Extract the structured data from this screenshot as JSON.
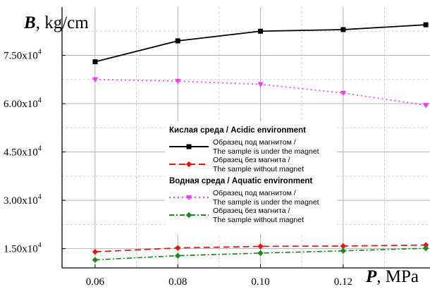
{
  "chart_data": {
    "type": "line",
    "y_axis_title_symbol": "B",
    "y_axis_title_unit": ", kg/cm",
    "x_axis_title_symbol": "P",
    "x_axis_title_unit": ", MPa",
    "x_ticks": [
      0.06,
      0.08,
      0.1,
      0.12
    ],
    "x_tick_labels": [
      "0.06",
      "0.08",
      "0.10",
      "0.12"
    ],
    "y_ticks": [
      15000,
      30000,
      45000,
      60000,
      75000
    ],
    "y_tick_mantissas": [
      "1.50x10",
      "3.00x10",
      "4.50x10",
      "6.00x10",
      "7.50x10"
    ],
    "y_tick_exponent": "4",
    "xlim": [
      0.052,
      0.141
    ],
    "ylim": [
      9000,
      90000
    ],
    "grid": true,
    "legend_position": "center",
    "legend_groups": [
      {
        "title": "Кислая среда / Acidic environment",
        "series_indices": [
          0,
          1
        ]
      },
      {
        "title": "Водная среда / Aquatic environment",
        "series_indices": [
          2,
          3
        ]
      }
    ],
    "series": [
      {
        "label_line1": "Образец под магнитом /",
        "label_line2": "The sample is under the magnet",
        "color": "#000000",
        "dash": "solid",
        "marker": "square",
        "x": [
          0.06,
          0.08,
          0.1,
          0.12,
          0.14
        ],
        "y": [
          73000,
          79500,
          82500,
          83000,
          84500
        ]
      },
      {
        "label_line1": "Образец без магнита /",
        "label_line2": "The sample without magnet",
        "color": "#ee1111",
        "dash": "dashed",
        "marker": "diamond",
        "x": [
          0.06,
          0.08,
          0.1,
          0.12,
          0.14
        ],
        "y": [
          14000,
          15200,
          15700,
          15800,
          16100
        ]
      },
      {
        "label_line1": "Образец под магнитом /",
        "label_line2": "The sample is under the magnet",
        "color": "#ff33ff",
        "dash": "dotted",
        "marker": "triangle-down",
        "x": [
          0.06,
          0.08,
          0.1,
          0.12,
          0.14
        ],
        "y": [
          67500,
          67000,
          66000,
          63300,
          59500
        ]
      },
      {
        "label_line1": "Образец без магнита /",
        "label_line2": "The sample without magnet",
        "color": "#1a8a1a",
        "dash": "dashdot",
        "marker": "diamond",
        "x": [
          0.06,
          0.08,
          0.1,
          0.12,
          0.14
        ],
        "y": [
          11500,
          12800,
          13600,
          14300,
          15100
        ]
      }
    ]
  }
}
